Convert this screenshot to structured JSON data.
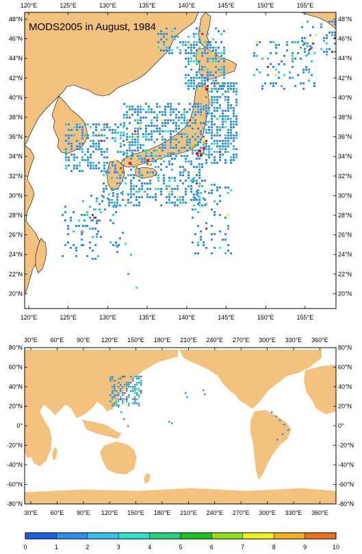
{
  "top_map": {
    "title": "MODS2005 in August, 1984",
    "lon_labels": [
      "120°E",
      "125°E",
      "130°E",
      "135°E",
      "140°E",
      "145°E",
      "150°E",
      "155°E"
    ],
    "lat_labels": [
      "48°N",
      "46°N",
      "44°N",
      "42°N",
      "40°N",
      "38°N",
      "36°N",
      "34°N",
      "32°N",
      "30°N",
      "28°N",
      "26°N",
      "24°N",
      "22°N",
      "20°N"
    ]
  },
  "bottom_map": {
    "lon_labels": [
      "30°E",
      "60°E",
      "90°E",
      "120°E",
      "150°E",
      "180°E",
      "210°E",
      "240°E",
      "270°E",
      "300°E",
      "330°E",
      "360°E"
    ],
    "lat_labels": [
      "80°N",
      "60°N",
      "40°N",
      "20°N",
      "0°",
      "-20°N",
      "-40°N",
      "-60°N",
      "-80°N"
    ]
  },
  "colorbar": {
    "labels": [
      "0",
      "1",
      "2",
      "3",
      "4",
      "5",
      "6",
      "7",
      "8",
      "9",
      "10"
    ],
    "colors": [
      "#1e5fdc",
      "#2e8ff0",
      "#35c0f0",
      "#30e0d0",
      "#28d080",
      "#20c020",
      "#90e020",
      "#f0f020",
      "#f0b020",
      "#f07020",
      "#d02020"
    ]
  },
  "colors": {
    "land": "#f2c27e",
    "obs_blue": "#2e7ff0"
  }
}
